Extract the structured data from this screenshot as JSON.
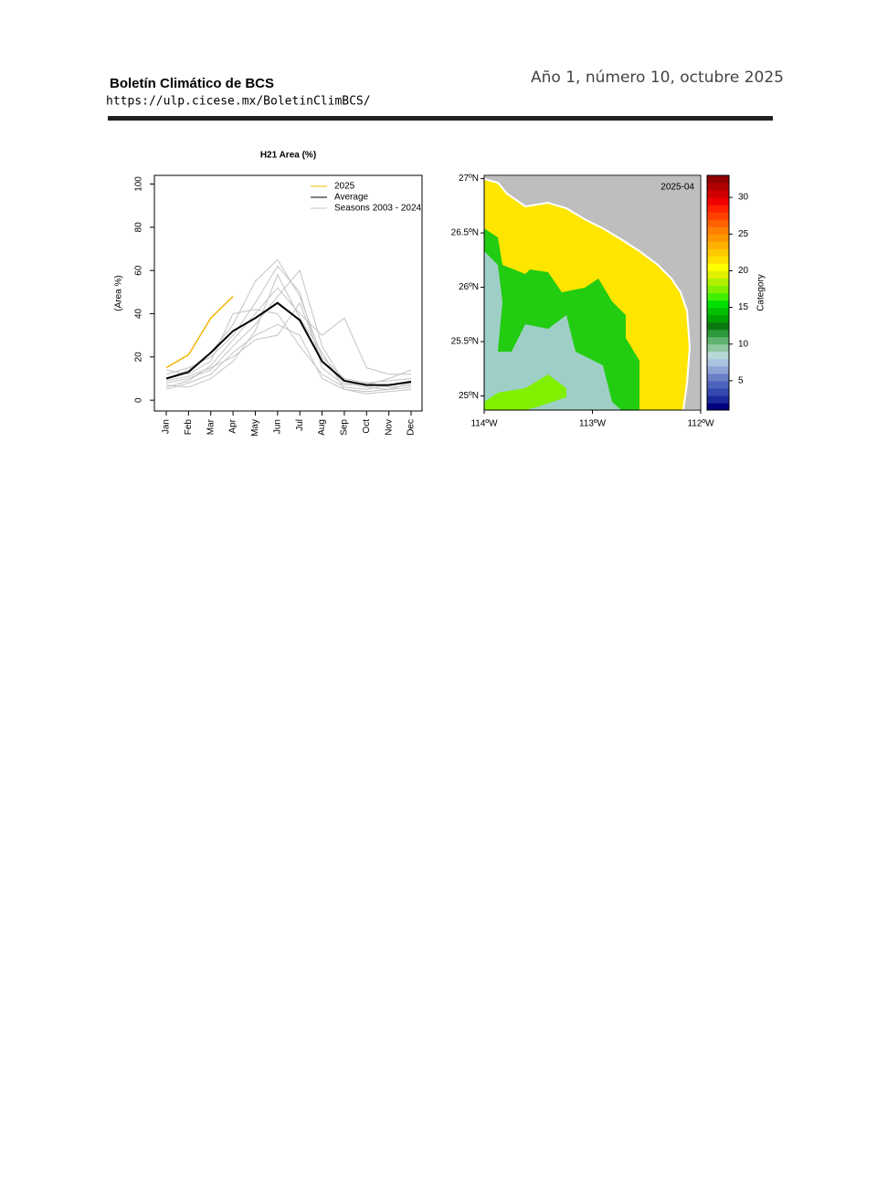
{
  "header": {
    "title": "Boletín Climático de BCS",
    "url": "https://ulp.cicese.mx/BoletinClimBCS/",
    "issue": "Año 1, número 10, octubre 2025"
  },
  "chart_data": [
    {
      "type": "line",
      "title": "H21 Area (%)",
      "y_label": "(Area %)",
      "categories": [
        "Jan",
        "Feb",
        "Mar",
        "Apr",
        "May",
        "Jun",
        "Jul",
        "Aug",
        "Sep",
        "Oct",
        "Nov",
        "Dec"
      ],
      "ylim": [
        -5,
        104
      ],
      "yticks": [
        0,
        20,
        40,
        60,
        80,
        100
      ],
      "series": [
        {
          "name": "2025",
          "color": "#f2b705",
          "values": [
            15,
            21,
            38,
            48,
            null,
            null,
            null,
            null,
            null,
            null,
            null,
            null
          ]
        },
        {
          "name": "Average",
          "color": "#000000",
          "values": [
            10,
            13,
            22,
            32,
            38,
            45,
            37,
            18,
            9,
            7,
            7,
            8.5
          ]
        }
      ],
      "seasons": {
        "name": "Seasons 2003 - 2024",
        "color": "#c4c4c4",
        "values": [
          [
            8,
            10,
            14,
            25,
            35,
            48,
            60,
            25,
            8,
            6,
            5,
            6
          ],
          [
            12,
            15,
            20,
            30,
            45,
            62,
            50,
            15,
            7,
            8,
            9,
            10
          ],
          [
            5,
            8,
            12,
            22,
            30,
            35,
            30,
            10,
            5,
            4,
            5,
            8
          ],
          [
            10,
            14,
            22,
            35,
            55,
            65,
            48,
            20,
            10,
            8,
            6,
            7
          ],
          [
            6,
            9,
            16,
            28,
            40,
            52,
            40,
            30,
            38,
            15,
            12,
            12
          ],
          [
            14,
            12,
            18,
            40,
            42,
            40,
            25,
            12,
            6,
            5,
            7,
            9
          ],
          [
            9,
            11,
            15,
            20,
            28,
            30,
            45,
            18,
            8,
            7,
            10,
            14
          ],
          [
            7,
            6,
            10,
            18,
            32,
            58,
            38,
            22,
            5,
            3,
            4,
            5
          ]
        ]
      }
    },
    {
      "type": "map",
      "title": "2025-04",
      "xlim": [
        -114,
        -112
      ],
      "xticks": [
        {
          "value": -114,
          "label": "114ºW"
        },
        {
          "value": -113,
          "label": "113ºW"
        },
        {
          "value": -112,
          "label": "112ºW"
        }
      ],
      "ylim": [
        24.87,
        27.03
      ],
      "yticks": [
        {
          "value": 25,
          "label": "25ºN"
        },
        {
          "value": 25.5,
          "label": "25.5ºN"
        },
        {
          "value": 26,
          "label": "26ºN"
        },
        {
          "value": 26.5,
          "label": "26.5ºN"
        },
        {
          "value": 27,
          "label": "27ºN"
        }
      ],
      "colorbar": {
        "label": "Category",
        "lim": [
          1,
          33
        ],
        "ticks": [
          5,
          10,
          15,
          20,
          25,
          30
        ],
        "colors": [
          "#000080",
          "#1a2a9a",
          "#3448b0",
          "#4e64bc",
          "#6a7fc6",
          "#8fa3d6",
          "#a9c3e0",
          "#b8d8d8",
          "#8fc9a0",
          "#5fb36f",
          "#2e9a3e",
          "#0a7a10",
          "#00a000",
          "#00c000",
          "#00e000",
          "#40f000",
          "#80f000",
          "#b0f000",
          "#e0f000",
          "#ffff00",
          "#ffe000",
          "#ffc800",
          "#ffb000",
          "#ff9800",
          "#ff8000",
          "#ff6000",
          "#ff4000",
          "#ff2000",
          "#f00000",
          "#d00000",
          "#b00000",
          "#900000"
        ]
      }
    }
  ]
}
